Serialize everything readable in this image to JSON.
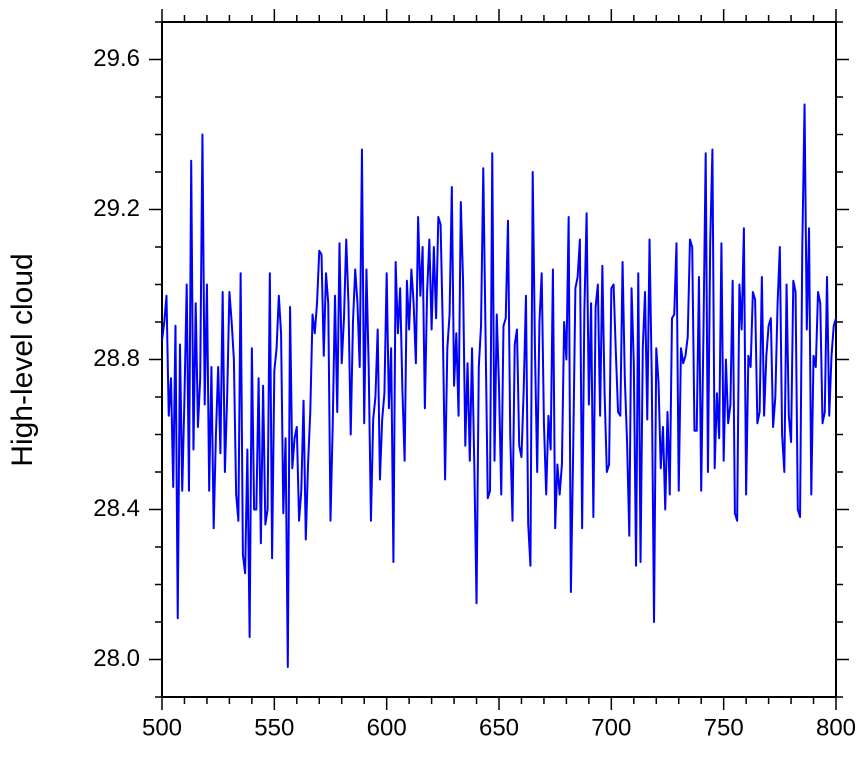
{
  "chart_data": {
    "type": "line",
    "y_label": "High-level cloud",
    "x": [
      500,
      501,
      502,
      503,
      504,
      505,
      506,
      507,
      508,
      509,
      510,
      511,
      512,
      513,
      514,
      515,
      516,
      517,
      518,
      519,
      520,
      521,
      522,
      523,
      524,
      525,
      526,
      527,
      528,
      529,
      530,
      531,
      532,
      533,
      534,
      535,
      536,
      537,
      538,
      539,
      540,
      541,
      542,
      543,
      544,
      545,
      546,
      547,
      548,
      549,
      550,
      551,
      552,
      553,
      554,
      555,
      556,
      557,
      558,
      559,
      560,
      561,
      562,
      563,
      564,
      565,
      566,
      567,
      568,
      569,
      570,
      571,
      572,
      573,
      574,
      575,
      576,
      577,
      578,
      579,
      580,
      581,
      582,
      583,
      584,
      585,
      586,
      587,
      588,
      589,
      590,
      591,
      592,
      593,
      594,
      595,
      596,
      597,
      598,
      599,
      600,
      601,
      602,
      603,
      604,
      605,
      606,
      607,
      608,
      609,
      610,
      611,
      612,
      613,
      614,
      615,
      616,
      617,
      618,
      619,
      620,
      621,
      622,
      623,
      624,
      625,
      626,
      627,
      628,
      629,
      630,
      631,
      632,
      633,
      634,
      635,
      636,
      637,
      638,
      639,
      640,
      641,
      642,
      643,
      644,
      645,
      646,
      647,
      648,
      649,
      650,
      651,
      652,
      653,
      654,
      655,
      656,
      657,
      658,
      659,
      660,
      661,
      662,
      663,
      664,
      665,
      666,
      667,
      668,
      669,
      670,
      671,
      672,
      673,
      674,
      675,
      676,
      677,
      678,
      679,
      680,
      681,
      682,
      683,
      684,
      685,
      686,
      687,
      688,
      689,
      690,
      691,
      692,
      693,
      694,
      695,
      696,
      697,
      698,
      699,
      700,
      701,
      702,
      703,
      704,
      705,
      706,
      707,
      708,
      709,
      710,
      711,
      712,
      713,
      714,
      715,
      716,
      717,
      718,
      719,
      720,
      721,
      722,
      723,
      724,
      725,
      726,
      727,
      728,
      729,
      730,
      731,
      732,
      733,
      734,
      735,
      736,
      737,
      738,
      739,
      740,
      741,
      742,
      743,
      744,
      745,
      746,
      747,
      748,
      749,
      750,
      751,
      752,
      753,
      754,
      755,
      756,
      757,
      758,
      759,
      760,
      761,
      762,
      763,
      764,
      765,
      766,
      767,
      768,
      769,
      770,
      771,
      772,
      773,
      774,
      775,
      776,
      777,
      778,
      779,
      780,
      781,
      782,
      783,
      784,
      785,
      786,
      787,
      788,
      789,
      790,
      791,
      792,
      793,
      794,
      795,
      796,
      797,
      798,
      799,
      800
    ],
    "series": [
      {
        "color": "#0000ff",
        "values": [
          28.85,
          28.9,
          28.97,
          28.65,
          28.75,
          28.46,
          28.89,
          28.11,
          28.84,
          28.45,
          28.7,
          29.0,
          28.45,
          29.33,
          28.56,
          28.95,
          28.62,
          28.75,
          29.4,
          28.68,
          29.0,
          28.45,
          28.78,
          28.35,
          28.6,
          28.78,
          28.55,
          28.98,
          28.5,
          28.7,
          28.98,
          28.9,
          28.8,
          28.44,
          28.37,
          29.03,
          28.28,
          28.23,
          28.56,
          28.06,
          28.83,
          28.4,
          28.4,
          28.75,
          28.31,
          28.73,
          28.36,
          28.4,
          29.03,
          28.27,
          28.77,
          28.83,
          28.97,
          28.87,
          28.39,
          28.59,
          27.98,
          28.94,
          28.51,
          28.59,
          28.62,
          28.37,
          28.45,
          28.69,
          28.32,
          28.52,
          28.66,
          28.92,
          28.87,
          28.95,
          29.09,
          29.08,
          28.81,
          29.03,
          28.95,
          28.37,
          28.63,
          28.97,
          28.66,
          29.11,
          28.79,
          28.91,
          29.12,
          28.95,
          28.6,
          28.9,
          29.04,
          28.95,
          28.78,
          29.36,
          28.63,
          29.04,
          28.78,
          28.37,
          28.64,
          28.7,
          28.88,
          28.48,
          28.64,
          28.71,
          29.03,
          28.67,
          28.83,
          28.26,
          29.06,
          28.87,
          28.99,
          28.72,
          28.53,
          29.01,
          28.88,
          29.04,
          28.95,
          28.79,
          29.18,
          28.97,
          29.1,
          28.67,
          28.98,
          29.12,
          28.88,
          29.1,
          28.91,
          29.18,
          29.16,
          28.88,
          28.48,
          28.83,
          28.92,
          29.26,
          28.73,
          28.87,
          28.65,
          29.22,
          29.01,
          28.57,
          28.79,
          28.53,
          28.83,
          28.52,
          28.15,
          28.78,
          28.89,
          29.31,
          28.87,
          28.43,
          28.45,
          29.35,
          28.53,
          28.92,
          28.73,
          28.44,
          28.89,
          28.91,
          29.17,
          28.6,
          28.37,
          28.84,
          28.88,
          28.57,
          28.54,
          28.72,
          28.97,
          28.36,
          28.25,
          29.3,
          28.83,
          28.5,
          28.9,
          29.03,
          28.63,
          28.44,
          28.65,
          28.56,
          29.04,
          28.35,
          28.52,
          28.44,
          28.52,
          28.9,
          28.8,
          29.18,
          28.18,
          28.55,
          28.99,
          29.02,
          29.12,
          28.35,
          28.93,
          29.19,
          28.68,
          28.95,
          28.38,
          28.94,
          29.0,
          28.65,
          29.05,
          28.71,
          28.5,
          28.52,
          28.99,
          29.0,
          28.82,
          28.66,
          28.65,
          29.06,
          28.75,
          28.58,
          28.33,
          28.99,
          28.79,
          28.25,
          29.03,
          28.26,
          28.83,
          28.98,
          28.64,
          29.12,
          28.75,
          28.1,
          28.83,
          28.74,
          28.51,
          28.62,
          28.4,
          28.66,
          28.44,
          28.91,
          28.92,
          29.11,
          28.45,
          28.83,
          28.79,
          28.81,
          28.86,
          29.12,
          29.1,
          28.61,
          28.61,
          29.02,
          28.45,
          28.87,
          29.35,
          28.5,
          29.11,
          29.36,
          28.51,
          28.71,
          28.59,
          29.11,
          28.53,
          28.8,
          28.63,
          28.68,
          29.01,
          28.39,
          28.37,
          29.0,
          28.88,
          29.15,
          28.44,
          28.81,
          28.78,
          28.98,
          28.96,
          28.63,
          28.66,
          29.02,
          28.65,
          28.81,
          28.89,
          28.91,
          28.62,
          28.7,
          28.95,
          29.1,
          28.6,
          28.5,
          29.0,
          28.65,
          28.58,
          29.01,
          28.98,
          28.4,
          28.38,
          29.1,
          29.48,
          28.88,
          29.15,
          28.44,
          28.81,
          28.78,
          28.98,
          28.95,
          28.63,
          28.66,
          29.02,
          28.65,
          28.81,
          28.89,
          28.91
        ]
      }
    ],
    "xlim": [
      500,
      800
    ],
    "xticks": [
      500,
      550,
      600,
      650,
      700,
      750,
      800
    ],
    "xminorticks": [
      510,
      520,
      530,
      540,
      560,
      570,
      580,
      590,
      610,
      620,
      630,
      640,
      660,
      670,
      680,
      690,
      710,
      720,
      730,
      740,
      760,
      770,
      780,
      790
    ],
    "ylim": [
      27.9,
      29.7
    ],
    "yticks": [
      {
        "value": 28.0,
        "label": "28.0"
      },
      28.4,
      28.8,
      29.2,
      29.6
    ],
    "yminorticks": [
      27.9,
      28.1,
      28.2,
      28.3,
      28.5,
      28.6,
      28.7,
      28.9,
      29.0,
      29.1,
      29.3,
      29.4,
      29.5,
      29.7
    ]
  }
}
